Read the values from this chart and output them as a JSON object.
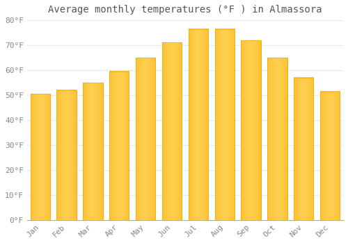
{
  "title": "Average monthly temperatures (°F ) in Almassora",
  "months": [
    "Jan",
    "Feb",
    "Mar",
    "Apr",
    "May",
    "Jun",
    "Jul",
    "Aug",
    "Sep",
    "Oct",
    "Nov",
    "Dec"
  ],
  "values": [
    50.5,
    52.0,
    55.0,
    59.5,
    65.0,
    71.0,
    76.5,
    76.5,
    72.0,
    65.0,
    57.0,
    51.5
  ],
  "bar_color_center": "#FFD050",
  "bar_color_edge": "#F5A800",
  "background_color": "#FFFFFF",
  "grid_color": "#E8E8E8",
  "text_color": "#888888",
  "title_color": "#555555",
  "ylim": [
    0,
    80
  ],
  "yticks": [
    0,
    10,
    20,
    30,
    40,
    50,
    60,
    70,
    80
  ],
  "ytick_labels": [
    "0°F",
    "10°F",
    "20°F",
    "30°F",
    "40°F",
    "50°F",
    "60°F",
    "70°F",
    "80°F"
  ],
  "title_fontsize": 10,
  "tick_fontsize": 8,
  "figsize": [
    5.0,
    3.5
  ],
  "dpi": 100
}
